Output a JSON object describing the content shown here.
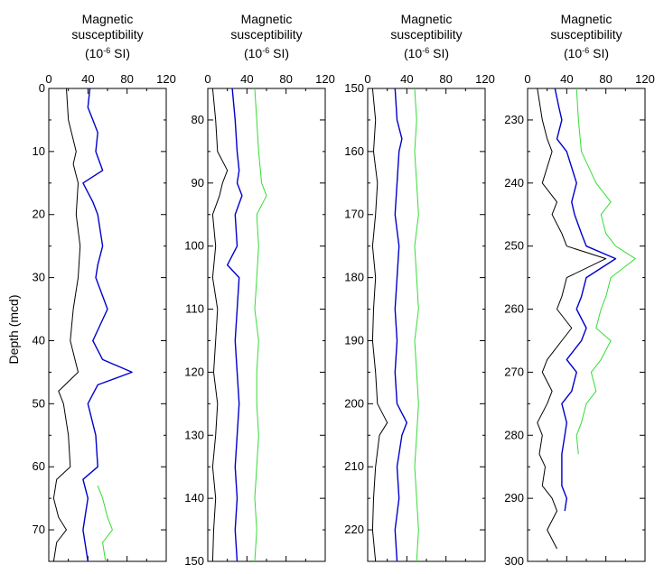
{
  "figure": {
    "title_line1": "Magnetic",
    "title_line2": "susceptibility",
    "title_unit_prefix": "(10",
    "title_unit_exp": "-6",
    "title_unit_suffix": " SI)",
    "ylabel": "Depth (mcd)"
  },
  "series_colors": {
    "black": "#000000",
    "blue": "#0000cc",
    "green": "#33dd33"
  },
  "chart_data": [
    {
      "type": "line",
      "panel": 1,
      "xlim": [
        0,
        120
      ],
      "x_ticks": [
        0,
        40,
        80,
        120
      ],
      "ylim": [
        0,
        75
      ],
      "y_ticks": [
        0,
        10,
        20,
        30,
        40,
        50,
        60,
        70
      ],
      "grid": false,
      "series": [
        {
          "color": "black",
          "depth": [
            0,
            5,
            10,
            12,
            15,
            20,
            25,
            30,
            35,
            40,
            45,
            48,
            50,
            55,
            60,
            62,
            65,
            68,
            70,
            72,
            75
          ],
          "values": [
            18,
            20,
            28,
            25,
            30,
            28,
            32,
            30,
            25,
            22,
            30,
            10,
            15,
            20,
            22,
            8,
            5,
            10,
            18,
            8,
            5
          ]
        },
        {
          "color": "blue",
          "depth": [
            0,
            3,
            5,
            7,
            10,
            13,
            15,
            18,
            20,
            25,
            28,
            30,
            35,
            40,
            43,
            45,
            47,
            50,
            55,
            60,
            62,
            65,
            70,
            75
          ],
          "values": [
            42,
            40,
            45,
            50,
            48,
            55,
            35,
            45,
            50,
            55,
            50,
            48,
            60,
            45,
            55,
            85,
            50,
            40,
            48,
            50,
            35,
            40,
            35,
            40
          ]
        },
        {
          "color": "green",
          "depth": [
            63,
            65,
            68,
            70,
            72,
            75
          ],
          "values": [
            50,
            55,
            60,
            65,
            55,
            58
          ]
        }
      ]
    },
    {
      "type": "line",
      "panel": 2,
      "xlim": [
        0,
        120
      ],
      "x_ticks": [
        0,
        40,
        80,
        120
      ],
      "ylim": [
        75,
        150
      ],
      "y_ticks": [
        80,
        90,
        100,
        110,
        120,
        130,
        140,
        150
      ],
      "grid": false,
      "series": [
        {
          "color": "black",
          "depth": [
            75,
            80,
            85,
            88,
            90,
            92,
            95,
            100,
            105,
            110,
            115,
            120,
            125,
            130,
            135,
            140,
            145,
            150
          ],
          "values": [
            5,
            8,
            10,
            20,
            15,
            12,
            5,
            8,
            5,
            10,
            8,
            6,
            10,
            8,
            5,
            8,
            6,
            5
          ]
        },
        {
          "color": "blue",
          "depth": [
            75,
            80,
            85,
            88,
            90,
            92,
            95,
            100,
            103,
            105,
            110,
            115,
            120,
            125,
            130,
            135,
            140,
            145,
            150
          ],
          "values": [
            25,
            28,
            30,
            32,
            30,
            35,
            28,
            30,
            20,
            32,
            30,
            28,
            30,
            32,
            30,
            28,
            30,
            28,
            30
          ]
        },
        {
          "color": "green",
          "depth": [
            75,
            80,
            85,
            90,
            92,
            95,
            100,
            105,
            110,
            115,
            120,
            125,
            130,
            135,
            140,
            145,
            150
          ],
          "values": [
            48,
            50,
            52,
            55,
            60,
            50,
            52,
            50,
            48,
            52,
            50,
            50,
            52,
            50,
            48,
            50,
            48
          ]
        }
      ]
    },
    {
      "type": "line",
      "panel": 3,
      "xlim": [
        0,
        120
      ],
      "x_ticks": [
        0,
        40,
        80,
        120
      ],
      "ylim": [
        150,
        225
      ],
      "y_ticks": [
        150,
        160,
        170,
        180,
        190,
        200,
        210,
        220
      ],
      "grid": false,
      "series": [
        {
          "color": "black",
          "depth": [
            150,
            155,
            160,
            165,
            170,
            175,
            180,
            185,
            190,
            195,
            200,
            203,
            205,
            210,
            215,
            220,
            225
          ],
          "values": [
            5,
            8,
            6,
            10,
            8,
            5,
            8,
            6,
            5,
            8,
            10,
            20,
            12,
            8,
            6,
            5,
            8
          ]
        },
        {
          "color": "blue",
          "depth": [
            150,
            155,
            158,
            160,
            165,
            170,
            175,
            180,
            185,
            190,
            195,
            200,
            203,
            205,
            210,
            215,
            220,
            225
          ],
          "values": [
            28,
            30,
            35,
            32,
            30,
            28,
            32,
            30,
            28,
            30,
            28,
            30,
            40,
            35,
            30,
            32,
            28,
            30
          ]
        },
        {
          "color": "green",
          "depth": [
            150,
            155,
            160,
            165,
            170,
            175,
            180,
            185,
            190,
            195,
            200,
            205,
            210,
            215,
            220,
            225
          ],
          "values": [
            48,
            50,
            48,
            50,
            52,
            48,
            50,
            52,
            48,
            50,
            52,
            50,
            48,
            50,
            52,
            50
          ]
        }
      ]
    },
    {
      "type": "line",
      "panel": 4,
      "xlim": [
        0,
        120
      ],
      "x_ticks": [
        0,
        40,
        80,
        120
      ],
      "ylim": [
        225,
        300
      ],
      "y_ticks": [
        230,
        240,
        250,
        260,
        270,
        280,
        290,
        300
      ],
      "grid": false,
      "series": [
        {
          "color": "black",
          "depth": [
            225,
            230,
            233,
            235,
            240,
            243,
            245,
            248,
            250,
            252,
            255,
            258,
            260,
            263,
            265,
            268,
            270,
            273,
            275,
            278,
            280,
            283,
            285,
            288,
            290,
            292,
            295,
            298
          ],
          "values": [
            10,
            15,
            20,
            25,
            15,
            30,
            25,
            35,
            40,
            80,
            40,
            35,
            30,
            45,
            35,
            20,
            15,
            25,
            20,
            10,
            15,
            12,
            18,
            15,
            25,
            30,
            20,
            30
          ]
        },
        {
          "color": "blue",
          "depth": [
            225,
            228,
            230,
            233,
            235,
            240,
            243,
            245,
            248,
            250,
            252,
            255,
            258,
            260,
            263,
            265,
            268,
            270,
            273,
            275,
            278,
            280,
            283,
            288,
            290,
            292
          ],
          "values": [
            28,
            32,
            35,
            30,
            40,
            50,
            45,
            48,
            55,
            60,
            90,
            60,
            55,
            50,
            60,
            55,
            40,
            50,
            45,
            35,
            40,
            38,
            35,
            35,
            40,
            38
          ]
        },
        {
          "color": "green",
          "depth": [
            225,
            230,
            235,
            240,
            243,
            245,
            248,
            250,
            252,
            255,
            258,
            260,
            263,
            265,
            268,
            270,
            273,
            275,
            278,
            280,
            283
          ],
          "values": [
            50,
            52,
            55,
            70,
            85,
            75,
            80,
            90,
            110,
            85,
            80,
            75,
            70,
            85,
            75,
            65,
            70,
            60,
            55,
            50,
            52
          ]
        }
      ]
    }
  ]
}
